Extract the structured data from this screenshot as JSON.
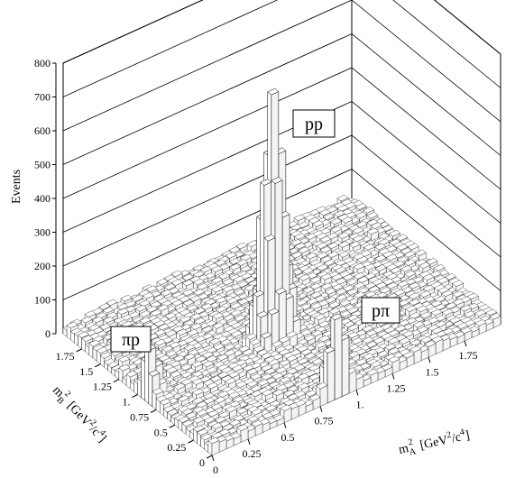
{
  "chart_data": {
    "type": "surface3d",
    "zlabel": "Events",
    "xlabel_base": "m",
    "xlabel_sub": "A",
    "xlabel_sup": "2",
    "xlabel_units_prefix": "[GeV",
    "xlabel_units_sup1": "2",
    "xlabel_units_mid": "/c",
    "xlabel_units_sup2": "4",
    "xlabel_units_suffix": "]",
    "ylabel_base": "m",
    "ylabel_sub": "B",
    "ylabel_sup": "2",
    "ylabel_units_prefix": "[GeV",
    "ylabel_units_sup1": "2",
    "ylabel_units_mid": "/c",
    "ylabel_units_sup2": "4",
    "ylabel_units_suffix": "]",
    "z_ticks": [
      "0",
      "100",
      "200",
      "300",
      "400",
      "500",
      "600",
      "700",
      "800"
    ],
    "z_tick_values": [
      0,
      100,
      200,
      300,
      400,
      500,
      600,
      700,
      800
    ],
    "zlim": [
      0,
      800
    ],
    "x_ticks": [
      "0",
      "0.25",
      "0.5",
      "0.75",
      "1.",
      "1.25",
      "1.5",
      "1.75"
    ],
    "x_tick_values": [
      0,
      0.25,
      0.5,
      0.75,
      1.0,
      1.25,
      1.5,
      1.75
    ],
    "y_ticks": [
      "0",
      "0.25",
      "0.5",
      "0.75",
      "1.",
      "1.25",
      "1.5",
      "1.75"
    ],
    "y_tick_values": [
      0,
      0.25,
      0.5,
      0.75,
      1.0,
      1.25,
      1.5,
      1.75
    ],
    "xlim": [
      0,
      2
    ],
    "ylim": [
      0,
      2
    ],
    "peaks": [
      {
        "label": "pp",
        "x": 0.88,
        "y": 0.88,
        "height": 720,
        "width": 0.06
      },
      {
        "label": "pπ",
        "x": 0.88,
        "y": 0.02,
        "height": 220,
        "width": 0.05
      },
      {
        "label": "πp",
        "x": 0.02,
        "y": 0.88,
        "height": 130,
        "width": 0.05
      }
    ],
    "background_level": 25
  }
}
